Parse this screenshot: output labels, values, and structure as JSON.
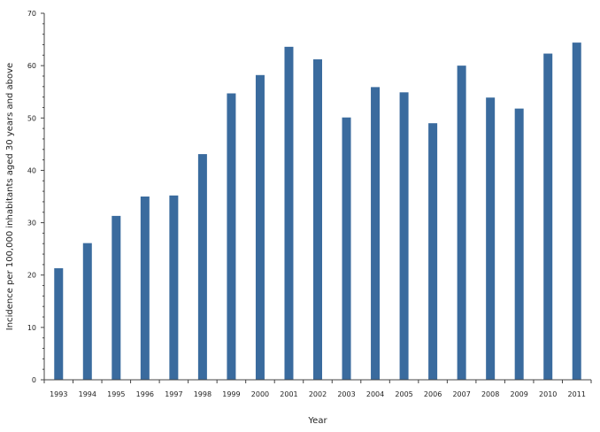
{
  "colors": {
    "bar": "#3a6b9e",
    "axis": "#444444",
    "text": "#222222"
  },
  "chart_data": {
    "type": "bar",
    "xlabel": "Year",
    "ylabel": "Incidence per 100,000 inhabitants aged 30 years and above",
    "ylim": [
      0,
      70
    ],
    "yticks": [
      0,
      10,
      20,
      30,
      40,
      50,
      60,
      70
    ],
    "categories": [
      "1993",
      "1994",
      "1995",
      "1996",
      "1997",
      "1998",
      "1999",
      "2000",
      "2001",
      "2002",
      "2003",
      "2004",
      "2005",
      "2006",
      "2007",
      "2008",
      "2009",
      "2010",
      "2011"
    ],
    "values": [
      21.3,
      26.1,
      31.3,
      35.0,
      35.2,
      43.1,
      54.7,
      58.2,
      63.6,
      61.2,
      50.1,
      55.9,
      54.9,
      49.0,
      60.0,
      53.9,
      51.8,
      62.3,
      64.4
    ],
    "grid": false,
    "legend": "none"
  }
}
